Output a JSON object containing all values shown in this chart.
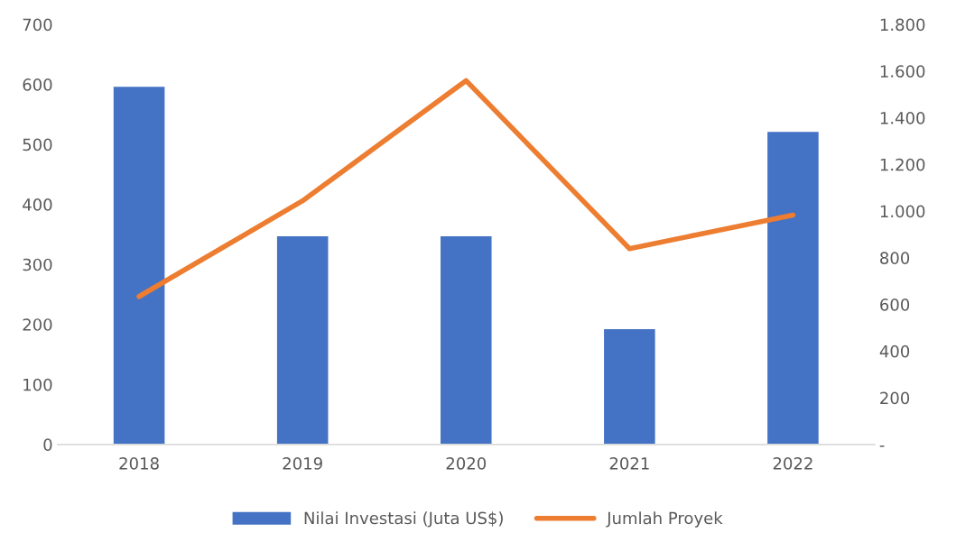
{
  "chart_data": {
    "type": "bar",
    "categories": [
      "2018",
      "2019",
      "2020",
      "2021",
      "2022"
    ],
    "series": [
      {
        "name": "Nilai Investasi (Juta US$)",
        "color": "#4472c4",
        "values": [
          597,
          348,
          348,
          193,
          522
        ]
      },
      {
        "name": "Jumlah Proyek",
        "type": "line",
        "axis": "y2",
        "color": "#ed7d31",
        "values": [
          634,
          1044,
          1559,
          839,
          983
        ]
      }
    ],
    "ylim": [
      0,
      700
    ],
    "yticks": [
      0,
      100,
      200,
      300,
      400,
      500,
      600,
      700
    ],
    "y2lim": [
      0,
      1800
    ],
    "y2ticks": [
      {
        "value": 0,
        "label": "-"
      },
      {
        "value": 200,
        "label": "200"
      },
      {
        "value": 400,
        "label": "400"
      },
      {
        "value": 600,
        "label": "600"
      },
      {
        "value": 800,
        "label": "800"
      },
      {
        "value": 1000,
        "label": "1.000"
      },
      {
        "value": 1200,
        "label": "1.200"
      },
      {
        "value": 1400,
        "label": "1.400"
      },
      {
        "value": 1600,
        "label": "1.600"
      },
      {
        "value": 1800,
        "label": "1.800"
      }
    ],
    "grid": false,
    "legend": "bottom",
    "marker": "none",
    "line_style": "solid"
  }
}
